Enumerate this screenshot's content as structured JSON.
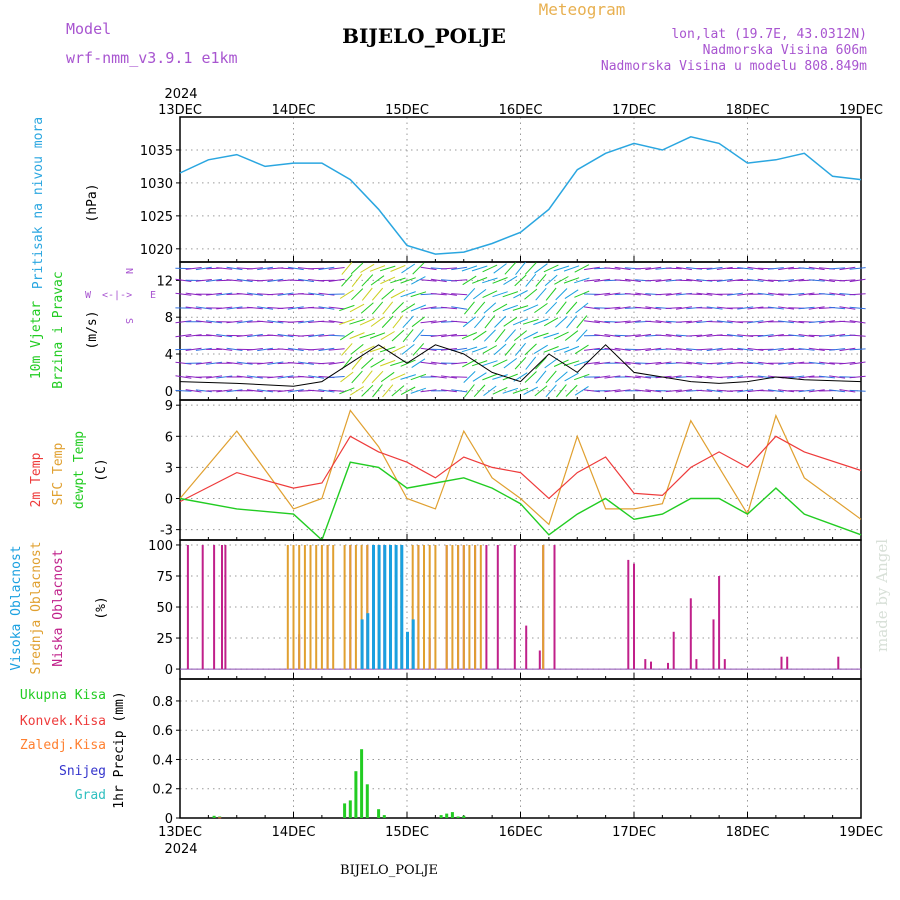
{
  "header": {
    "model_label": "Model",
    "model_name": "wrf-nmm_v3.9.1 e1km",
    "title": "BIJELO_POLJE",
    "product": "Meteogram",
    "lonlat": "lon,lat (19.7E, 43.0312N)",
    "elevation": "Nadmorska Visina 606m",
    "model_elevation": "Nadmorska Visina u modelu 808.849m",
    "credit": "made by Angel",
    "footer_title": "BIJELO_POLJE"
  },
  "colors": {
    "pressure": "#2aa6e0",
    "t2m": "#ee3b3b",
    "sfc": "#e0a030",
    "dew": "#22cc22",
    "high_cloud": "#1aa0e0",
    "mid_cloud": "#e0a030",
    "low_cloud": "#c0208a",
    "total_precip": "#22cc22",
    "conv_precip": "#ee3b3b",
    "frz_precip": "#ff8030",
    "snow": "#3333cc",
    "hail": "#30c0c0",
    "header_purple": "#a855d0",
    "header_orange": "#e8b050"
  },
  "time_axis": {
    "year_label": "2024",
    "ticks": [
      "13DEC",
      "14DEC",
      "15DEC",
      "16DEC",
      "17DEC",
      "18DEC",
      "19DEC"
    ]
  },
  "panels": {
    "pressure": {
      "ylabel": "Pritisak na nivou mora",
      "unit": "(hPa)",
      "ticks": [
        "1020",
        "1025",
        "1030",
        "1035"
      ]
    },
    "wind": {
      "ylabel1": "10m Vjetar",
      "ylabel2": "Brzina i Pravac",
      "unit": "(m/s)",
      "ticks": [
        "0",
        "4",
        "8",
        "12"
      ],
      "compass": {
        "w": "W",
        "e": "E",
        "n": "N",
        "s": "S",
        "arrows": "<-|->"
      }
    },
    "temp": {
      "ylabel1": "2m Temp",
      "ylabel2": "SFC Temp",
      "ylabel3": "dewpt Temp",
      "unit": "(C)",
      "ticks": [
        "-3",
        "0",
        "3",
        "6",
        "9"
      ]
    },
    "cloud": {
      "ylabel1": "Visoka Oblacnost",
      "ylabel2": "Srednja Oblacnost",
      "ylabel3": "Niska Oblacnost",
      "unit": "(%)",
      "ticks": [
        "0",
        "25",
        "50",
        "75",
        "100"
      ]
    },
    "precip": {
      "legend": [
        "Ukupna Kisa",
        "Konvek.Kisa",
        "Zaledj.Kisa",
        "Snijeg",
        "Grad"
      ],
      "ylabel": "1hr Precip (mm)",
      "ticks": [
        "0",
        "0.2",
        "0.4",
        "0.6",
        "0.8"
      ]
    }
  },
  "chart_data": [
    {
      "type": "line",
      "panel": "pressure",
      "series": [
        {
          "name": "Pritisak na nivou mora",
          "x": [
            0,
            0.25,
            0.5,
            0.75,
            1,
            1.25,
            1.5,
            1.75,
            2,
            2.25,
            2.5,
            2.75,
            3,
            3.25,
            3.5,
            3.75,
            4,
            4.25,
            4.5,
            4.75,
            5,
            5.25,
            5.5,
            5.75,
            6
          ],
          "values": [
            1031.5,
            1033.5,
            1034.3,
            1032.5,
            1033,
            1033,
            1030.5,
            1026,
            1020.5,
            1019.2,
            1019.5,
            1020.8,
            1022.5,
            1026,
            1032,
            1034.5,
            1036,
            1035,
            1037,
            1036,
            1033,
            1033.5,
            1034.5,
            1031,
            1030.5
          ]
        }
      ],
      "ylim": [
        1018,
        1040
      ]
    },
    {
      "type": "line",
      "panel": "wind",
      "series": [
        {
          "name": "wind speed",
          "x": [
            0,
            0.5,
            1,
            1.25,
            1.5,
            1.75,
            2,
            2.25,
            2.5,
            2.75,
            3,
            3.25,
            3.5,
            3.75,
            4,
            4.25,
            4.5,
            4.75,
            5,
            5.25,
            5.5,
            6
          ],
          "values": [
            1,
            0.8,
            0.5,
            1,
            3,
            5,
            3,
            5,
            4,
            2,
            1,
            4,
            2,
            5,
            2,
            1.5,
            1,
            0.8,
            1,
            1.5,
            1.2,
            1
          ]
        }
      ],
      "ylim": [
        -1,
        14
      ]
    },
    {
      "type": "line",
      "panel": "temp",
      "series": [
        {
          "name": "2m Temp",
          "x": [
            0,
            0.5,
            1,
            1.25,
            1.5,
            1.75,
            2,
            2.25,
            2.5,
            2.75,
            3,
            3.25,
            3.5,
            3.75,
            4,
            4.25,
            4.5,
            4.75,
            5,
            5.25,
            5.5,
            6
          ],
          "values": [
            -0.3,
            2.5,
            1,
            1.5,
            6,
            4.5,
            3.5,
            2,
            4,
            3,
            2.5,
            0,
            2.5,
            4,
            0.5,
            0.3,
            3,
            4.5,
            3,
            6,
            4.5,
            2.7
          ]
        },
        {
          "name": "SFC Temp",
          "x": [
            0,
            0.5,
            1,
            1.25,
            1.5,
            1.75,
            2,
            2.25,
            2.5,
            2.75,
            3,
            3.25,
            3.5,
            3.75,
            4,
            4.25,
            4.5,
            4.75,
            5,
            5.25,
            5.5,
            6
          ],
          "values": [
            0,
            6.5,
            -1,
            0,
            8.5,
            5,
            0,
            -1,
            6.5,
            2,
            0,
            -2.5,
            6,
            -1,
            -1,
            -0.5,
            7.5,
            3,
            -1.5,
            8,
            2,
            -2
          ]
        },
        {
          "name": "dewpt Temp",
          "x": [
            0,
            0.5,
            1,
            1.25,
            1.5,
            1.75,
            2,
            2.25,
            2.5,
            2.75,
            3,
            3.25,
            3.5,
            3.75,
            4,
            4.25,
            4.5,
            4.75,
            5,
            5.25,
            5.5,
            6
          ],
          "values": [
            0,
            -1,
            -1.5,
            -4,
            3.5,
            3,
            1,
            1.5,
            2,
            1,
            -0.5,
            -3.5,
            -1.5,
            0,
            -2,
            -1.5,
            0,
            0,
            -1.5,
            1,
            -1.5,
            -3.5
          ]
        }
      ],
      "ylim": [
        -4,
        9.5
      ]
    },
    {
      "type": "bar",
      "panel": "cloud",
      "series": [
        {
          "name": "Niska Oblacnost",
          "x": [
            0.07,
            0.2,
            0.3,
            0.37,
            0.4,
            1,
            1.05,
            1.3,
            1.5,
            1.65,
            1.8,
            2.05,
            2.1,
            2.2,
            2.35,
            2.45,
            2.5,
            2.6,
            2.7,
            2.8,
            2.95,
            3.05,
            3.17,
            3.2,
            3.3,
            3.95,
            4,
            4.1,
            4.15,
            4.3,
            4.35,
            4.5,
            4.55,
            4.7,
            4.75,
            4.8,
            5.3,
            5.35,
            5.8
          ],
          "values": [
            100,
            100,
            100,
            100,
            100,
            35,
            28,
            100,
            100,
            100,
            100,
            32,
            100,
            25,
            100,
            100,
            100,
            100,
            100,
            100,
            100,
            35,
            15,
            100,
            100,
            88,
            85,
            8,
            6,
            5,
            30,
            57,
            8,
            40,
            75,
            8,
            10,
            10,
            10
          ]
        },
        {
          "name": "Srednja Oblacnost",
          "x": [
            0.95,
            1.0,
            1.05,
            1.1,
            1.15,
            1.2,
            1.25,
            1.3,
            1.35,
            1.45,
            1.5,
            1.55,
            1.6,
            1.65,
            1.75,
            1.85,
            1.95,
            2.05,
            2.1,
            2.15,
            2.2,
            2.25,
            2.35,
            2.4,
            2.45,
            2.5,
            2.55,
            2.6,
            2.65,
            3.2
          ],
          "values": [
            100,
            100,
            100,
            100,
            100,
            100,
            100,
            100,
            100,
            100,
            100,
            100,
            100,
            100,
            100,
            100,
            100,
            100,
            100,
            100,
            100,
            100,
            100,
            100,
            100,
            100,
            100,
            100,
            100,
            100
          ]
        },
        {
          "name": "Visoka Oblacnost",
          "x": [
            1.6,
            1.65,
            1.7,
            1.75,
            1.8,
            1.85,
            1.9,
            1.95,
            2.0,
            2.05
          ],
          "values": [
            40,
            45,
            100,
            100,
            100,
            100,
            100,
            100,
            30,
            40
          ]
        }
      ],
      "ylim": [
        0,
        100
      ]
    },
    {
      "type": "bar",
      "panel": "precip",
      "series": [
        {
          "name": "Ukupna Kisa",
          "x": [
            0.3,
            0.35,
            1.45,
            1.5,
            1.55,
            1.6,
            1.65,
            1.75,
            1.8,
            2.3,
            2.35,
            2.4,
            2.45,
            2.5
          ],
          "values": [
            0.015,
            0.01,
            0.1,
            0.12,
            0.32,
            0.47,
            0.23,
            0.06,
            0.02,
            0.02,
            0.03,
            0.04,
            0.01,
            0.015
          ]
        },
        {
          "name": "Konvek.Kisa",
          "x": [
            0.35
          ],
          "values": [
            0.005
          ]
        }
      ],
      "ylim": [
        0,
        0.95
      ]
    }
  ]
}
